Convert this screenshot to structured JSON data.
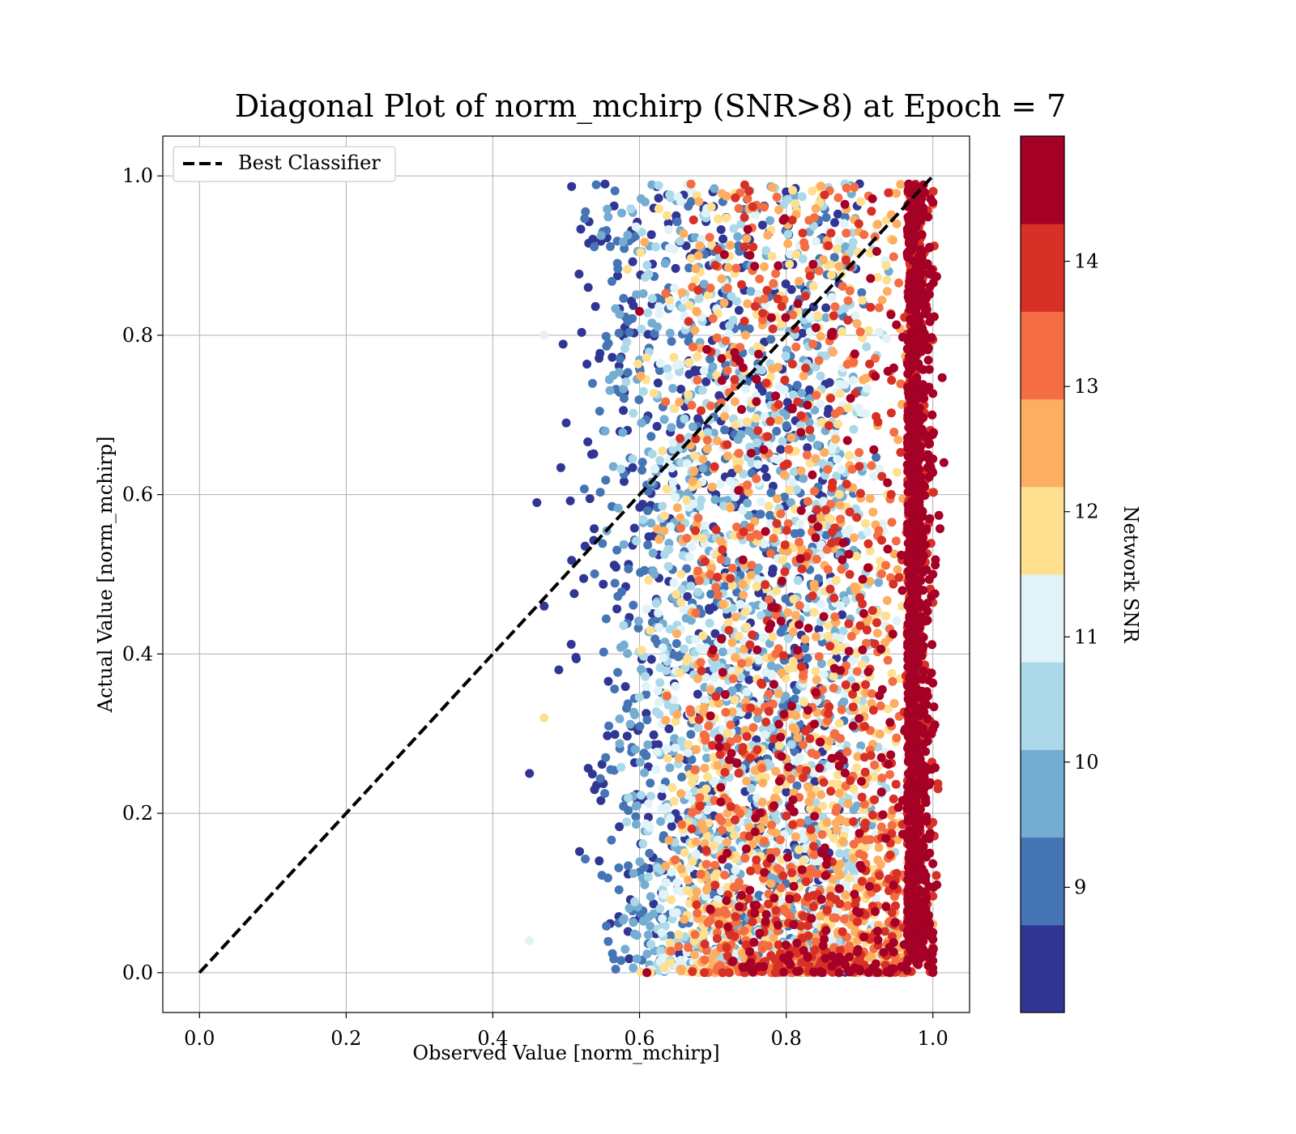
{
  "chart_data": {
    "type": "scatter",
    "title": "Diagonal Plot of norm_mchirp (SNR>8) at Epoch = 7",
    "xlabel": "Observed Value [norm_mchirp]",
    "ylabel": "Actual Value [norm_mchirp]",
    "xlim": [
      -0.05,
      1.05
    ],
    "ylim": [
      -0.05,
      1.05
    ],
    "xticks": [
      "0.0",
      "0.2",
      "0.4",
      "0.6",
      "0.8",
      "1.0"
    ],
    "yticks": [
      "0.0",
      "0.2",
      "0.4",
      "0.6",
      "0.8",
      "1.0"
    ],
    "grid": true,
    "legend": {
      "position": "top-left",
      "entries": [
        "Best Classifier"
      ]
    },
    "reference_line": {
      "name": "Best Classifier",
      "style": "dashed",
      "color": "#000000",
      "x": [
        0.0,
        1.0
      ],
      "y": [
        0.0,
        1.0
      ]
    },
    "colorbar": {
      "label": "Network SNR",
      "range": [
        8.0,
        15.0
      ],
      "ticks": [
        "9",
        "10",
        "11",
        "12",
        "13",
        "14"
      ],
      "colors": [
        "#313695",
        "#4575b4",
        "#74add1",
        "#abd9e9",
        "#e0f3f8",
        "#fee090",
        "#fdae61",
        "#f46d43",
        "#d73027",
        "#a50026"
      ]
    },
    "scatter_description": {
      "x_range": [
        0.45,
        1.0
      ],
      "y_range": [
        0.0,
        1.0
      ],
      "n_points_approx": 6000,
      "note": "points fill region between x~0.5 and x=1.0; low-SNR points near top-left, high-SNR points concentrated at x~1.0"
    },
    "sample_points": [
      {
        "x": 0.46,
        "y": 0.59,
        "snr": 8.2
      },
      {
        "x": 0.47,
        "y": 0.8,
        "snr": 11.2
      },
      {
        "x": 0.45,
        "y": 0.25,
        "snr": 8.3
      },
      {
        "x": 0.45,
        "y": 0.04,
        "snr": 10.8
      },
      {
        "x": 0.47,
        "y": 0.32,
        "snr": 12.1
      },
      {
        "x": 0.47,
        "y": 0.46,
        "snr": 8.4
      },
      {
        "x": 0.49,
        "y": 0.38,
        "snr": 8.3
      },
      {
        "x": 0.5,
        "y": 0.69,
        "snr": 8.2
      },
      {
        "x": 0.53,
        "y": 0.86,
        "snr": 8.4
      },
      {
        "x": 0.55,
        "y": 0.93,
        "snr": 9.0
      },
      {
        "x": 0.58,
        "y": 0.81,
        "snr": 8.5
      },
      {
        "x": 0.6,
        "y": 0.83,
        "snr": 14.8
      },
      {
        "x": 0.65,
        "y": 0.95,
        "snr": 8.3
      },
      {
        "x": 0.7,
        "y": 0.98,
        "snr": 8.2
      },
      {
        "x": 0.75,
        "y": 0.92,
        "snr": 8.4
      },
      {
        "x": 0.8,
        "y": 0.98,
        "snr": 8.5
      },
      {
        "x": 0.88,
        "y": 0.99,
        "snr": 10.3
      },
      {
        "x": 0.9,
        "y": 0.99,
        "snr": 8.2
      },
      {
        "x": 0.78,
        "y": 0.0,
        "snr": 13.5
      },
      {
        "x": 0.61,
        "y": 0.0,
        "snr": 14.5
      },
      {
        "x": 0.98,
        "y": 0.01,
        "snr": 14.8
      },
      {
        "x": 1.0,
        "y": 0.5,
        "snr": 14.9
      }
    ]
  }
}
